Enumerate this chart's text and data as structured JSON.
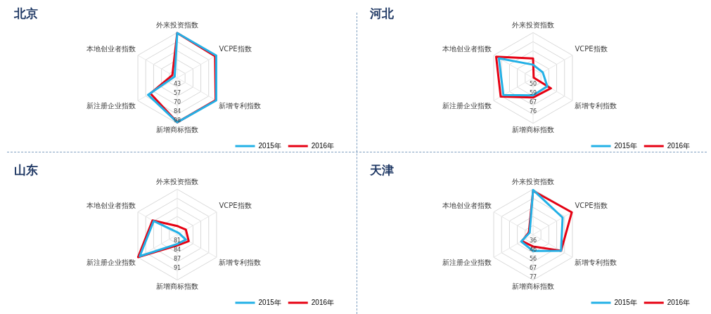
{
  "chart_data": [
    {
      "type": "radar",
      "title": "北京",
      "categories": [
        "外来投资指数",
        "VCPE指数",
        "新增专利指数",
        "新增商标指数",
        "新注册企业指数",
        "本地创业者指数"
      ],
      "series": [
        {
          "name": "2015年",
          "color": "#22b0e6",
          "values": [
            97,
            97,
            97,
            96,
            80,
            34
          ]
        },
        {
          "name": "2016年",
          "color": "#e60012",
          "values": [
            97,
            95,
            96,
            96,
            76,
            38
          ]
        }
      ],
      "ylim": [
        29.6,
        97.6
      ],
      "yticks": [
        {
          "value": 43.2,
          "label": "43"
        },
        {
          "value": 56.8,
          "label": "57"
        },
        {
          "value": 70.4,
          "label": "70"
        },
        {
          "value": 84,
          "label": "84"
        },
        {
          "value": 97.6,
          "label": "98"
        }
      ],
      "grid": true,
      "legend": "bottom right"
    },
    {
      "type": "radar",
      "title": "河北",
      "categories": [
        "外来投资指数",
        "VCPE指数",
        "新增专利指数",
        "新增商标指数",
        "新注册企业指数",
        "本地创业者指数"
      ],
      "series": [
        {
          "name": "2015年",
          "color": "#22b0e6",
          "values": [
            54,
            52,
            57,
            58,
            74,
            79
          ]
        },
        {
          "name": "2016年",
          "color": "#e60012",
          "values": [
            60,
            42,
            61,
            60,
            77,
            82
          ]
        }
      ],
      "ylim": [
        41.33,
        84.67
      ],
      "yticks": [
        {
          "value": 50,
          "label": "50"
        },
        {
          "value": 58.67,
          "label": "59"
        },
        {
          "value": 67.33,
          "label": "67"
        },
        {
          "value": 76,
          "label": "76"
        }
      ],
      "grid": true,
      "legend": "bottom right"
    },
    {
      "type": "radar",
      "title": "山东",
      "categories": [
        "外来投资指数",
        "VCPE指数",
        "新增专利指数",
        "新增商标指数",
        "新注册企业指数",
        "本地创业者指数"
      ],
      "series": [
        {
          "name": "2015年",
          "color": "#22b0e6",
          "values": [
            78.2,
            78.2,
            81,
            80.8,
            93.2,
            87.3
          ]
        },
        {
          "name": "2016年",
          "color": "#e60012",
          "values": [
            80.5,
            81,
            82.2,
            81.3,
            93.9,
            87.8
          ]
        }
      ],
      "ylim": [
        77.33,
        94
      ],
      "yticks": [
        {
          "value": 80.67,
          "label": "81"
        },
        {
          "value": 84,
          "label": "84"
        },
        {
          "value": 87.33,
          "label": "87"
        },
        {
          "value": 90.67,
          "label": "91"
        }
      ],
      "grid": true,
      "legend": "bottom right"
    },
    {
      "type": "radar",
      "title": "天津",
      "categories": [
        "外来投资指数",
        "VCPE指数",
        "新增专利指数",
        "新增商标指数",
        "新注册企业指数",
        "本地创业者指数"
      ],
      "series": [
        {
          "name": "2015年",
          "color": "#22b0e6",
          "values": [
            76,
            64,
            62,
            44,
            41,
            30
          ]
        },
        {
          "name": "2016年",
          "color": "#e60012",
          "values": [
            75,
            76,
            62,
            39,
            40,
            31
          ]
        }
      ],
      "ylim": [
        25.55,
        76.8
      ],
      "yticks": [
        {
          "value": 35.8,
          "label": "36"
        },
        {
          "value": 46.05,
          "label": "46"
        },
        {
          "value": 56.3,
          "label": "56"
        },
        {
          "value": 66.55,
          "label": "67"
        },
        {
          "value": 76.8,
          "label": "77"
        }
      ],
      "grid": true,
      "legend": "bottom right"
    }
  ]
}
